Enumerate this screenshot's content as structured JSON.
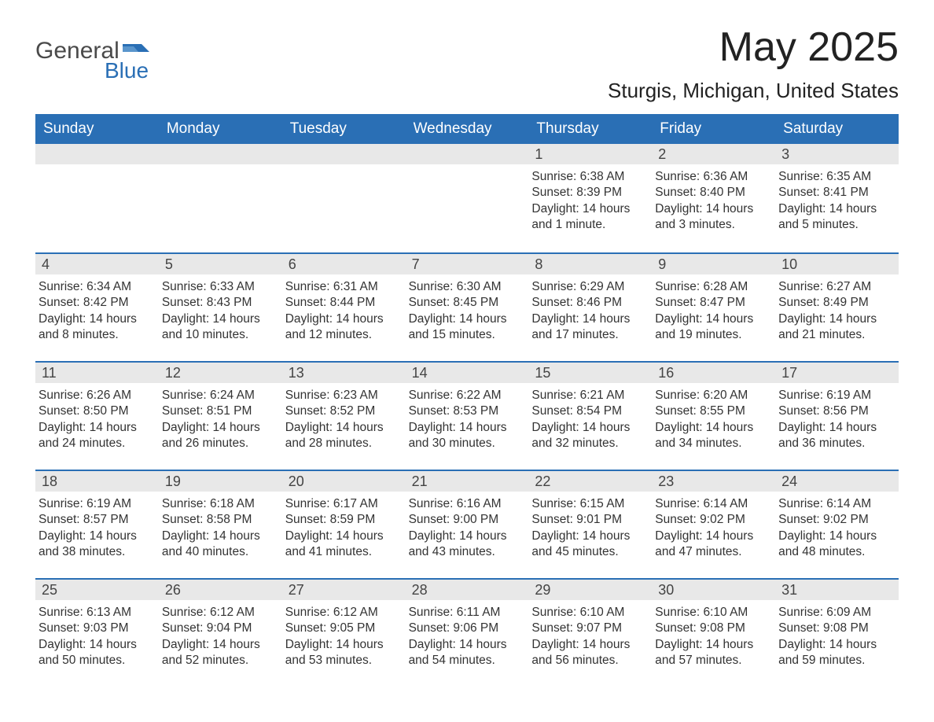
{
  "logo": {
    "word1": "General",
    "word2": "Blue",
    "accent_color": "#2a6fb5"
  },
  "header": {
    "month_title": "May 2025",
    "location": "Sturgis, Michigan, United States"
  },
  "colors": {
    "header_bg": "#2a6fb5",
    "header_text": "#ffffff",
    "daynum_bg": "#e8e8e8",
    "body_bg": "#ffffff",
    "text": "#333333"
  },
  "weekdays": [
    "Sunday",
    "Monday",
    "Tuesday",
    "Wednesday",
    "Thursday",
    "Friday",
    "Saturday"
  ],
  "weeks": [
    [
      null,
      null,
      null,
      null,
      {
        "n": "1",
        "sunrise": "6:38 AM",
        "sunset": "8:39 PM",
        "daylight": "14 hours and 1 minute."
      },
      {
        "n": "2",
        "sunrise": "6:36 AM",
        "sunset": "8:40 PM",
        "daylight": "14 hours and 3 minutes."
      },
      {
        "n": "3",
        "sunrise": "6:35 AM",
        "sunset": "8:41 PM",
        "daylight": "14 hours and 5 minutes."
      }
    ],
    [
      {
        "n": "4",
        "sunrise": "6:34 AM",
        "sunset": "8:42 PM",
        "daylight": "14 hours and 8 minutes."
      },
      {
        "n": "5",
        "sunrise": "6:33 AM",
        "sunset": "8:43 PM",
        "daylight": "14 hours and 10 minutes."
      },
      {
        "n": "6",
        "sunrise": "6:31 AM",
        "sunset": "8:44 PM",
        "daylight": "14 hours and 12 minutes."
      },
      {
        "n": "7",
        "sunrise": "6:30 AM",
        "sunset": "8:45 PM",
        "daylight": "14 hours and 15 minutes."
      },
      {
        "n": "8",
        "sunrise": "6:29 AM",
        "sunset": "8:46 PM",
        "daylight": "14 hours and 17 minutes."
      },
      {
        "n": "9",
        "sunrise": "6:28 AM",
        "sunset": "8:47 PM",
        "daylight": "14 hours and 19 minutes."
      },
      {
        "n": "10",
        "sunrise": "6:27 AM",
        "sunset": "8:49 PM",
        "daylight": "14 hours and 21 minutes."
      }
    ],
    [
      {
        "n": "11",
        "sunrise": "6:26 AM",
        "sunset": "8:50 PM",
        "daylight": "14 hours and 24 minutes."
      },
      {
        "n": "12",
        "sunrise": "6:24 AM",
        "sunset": "8:51 PM",
        "daylight": "14 hours and 26 minutes."
      },
      {
        "n": "13",
        "sunrise": "6:23 AM",
        "sunset": "8:52 PM",
        "daylight": "14 hours and 28 minutes."
      },
      {
        "n": "14",
        "sunrise": "6:22 AM",
        "sunset": "8:53 PM",
        "daylight": "14 hours and 30 minutes."
      },
      {
        "n": "15",
        "sunrise": "6:21 AM",
        "sunset": "8:54 PM",
        "daylight": "14 hours and 32 minutes."
      },
      {
        "n": "16",
        "sunrise": "6:20 AM",
        "sunset": "8:55 PM",
        "daylight": "14 hours and 34 minutes."
      },
      {
        "n": "17",
        "sunrise": "6:19 AM",
        "sunset": "8:56 PM",
        "daylight": "14 hours and 36 minutes."
      }
    ],
    [
      {
        "n": "18",
        "sunrise": "6:19 AM",
        "sunset": "8:57 PM",
        "daylight": "14 hours and 38 minutes."
      },
      {
        "n": "19",
        "sunrise": "6:18 AM",
        "sunset": "8:58 PM",
        "daylight": "14 hours and 40 minutes."
      },
      {
        "n": "20",
        "sunrise": "6:17 AM",
        "sunset": "8:59 PM",
        "daylight": "14 hours and 41 minutes."
      },
      {
        "n": "21",
        "sunrise": "6:16 AM",
        "sunset": "9:00 PM",
        "daylight": "14 hours and 43 minutes."
      },
      {
        "n": "22",
        "sunrise": "6:15 AM",
        "sunset": "9:01 PM",
        "daylight": "14 hours and 45 minutes."
      },
      {
        "n": "23",
        "sunrise": "6:14 AM",
        "sunset": "9:02 PM",
        "daylight": "14 hours and 47 minutes."
      },
      {
        "n": "24",
        "sunrise": "6:14 AM",
        "sunset": "9:02 PM",
        "daylight": "14 hours and 48 minutes."
      }
    ],
    [
      {
        "n": "25",
        "sunrise": "6:13 AM",
        "sunset": "9:03 PM",
        "daylight": "14 hours and 50 minutes."
      },
      {
        "n": "26",
        "sunrise": "6:12 AM",
        "sunset": "9:04 PM",
        "daylight": "14 hours and 52 minutes."
      },
      {
        "n": "27",
        "sunrise": "6:12 AM",
        "sunset": "9:05 PM",
        "daylight": "14 hours and 53 minutes."
      },
      {
        "n": "28",
        "sunrise": "6:11 AM",
        "sunset": "9:06 PM",
        "daylight": "14 hours and 54 minutes."
      },
      {
        "n": "29",
        "sunrise": "6:10 AM",
        "sunset": "9:07 PM",
        "daylight": "14 hours and 56 minutes."
      },
      {
        "n": "30",
        "sunrise": "6:10 AM",
        "sunset": "9:08 PM",
        "daylight": "14 hours and 57 minutes."
      },
      {
        "n": "31",
        "sunrise": "6:09 AM",
        "sunset": "9:08 PM",
        "daylight": "14 hours and 59 minutes."
      }
    ]
  ],
  "labels": {
    "sunrise_prefix": "Sunrise: ",
    "sunset_prefix": "Sunset: ",
    "daylight_prefix": "Daylight: "
  }
}
